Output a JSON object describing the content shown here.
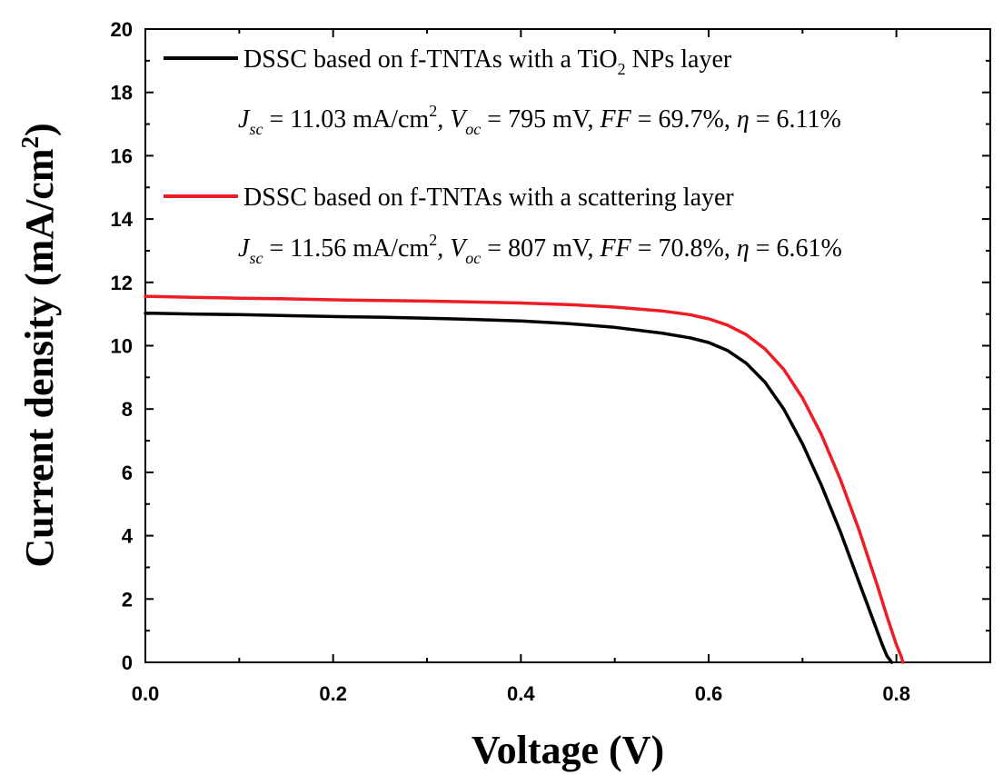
{
  "chart_data": {
    "type": "line",
    "xlabel": "Voltage (V)",
    "ylabel": {
      "text": "Current density (mA/cm",
      "sup": "2",
      "close": ")"
    },
    "xlim": [
      0.0,
      0.9
    ],
    "ylim": [
      0,
      20
    ],
    "xticks": [
      "0.0",
      "0.2",
      "0.4",
      "0.6",
      "0.8"
    ],
    "yticks": [
      "0",
      "2",
      "4",
      "6",
      "8",
      "10",
      "12",
      "14",
      "16",
      "18",
      "20"
    ],
    "grid": false,
    "legend_position": "top",
    "series": [
      {
        "name": "DSSC based on f-TNTAs with a TiO2 NPs layer",
        "color": "#000000",
        "legend": {
          "main_pre": "DSSC based on f-TNTAs with a TiO",
          "main_sub": "2",
          "main_post": " NPs layer",
          "jsc_sym": "J",
          "jsc_sub": "sc",
          "jsc_value": " = 11.03 mA/cm",
          "jsc_sup": "2",
          "voc_sym": ", V",
          "voc_sub": "oc",
          "voc_value": " = 795 mV, ",
          "ff_sym": "FF",
          "ff_value": " = 69.7%, ",
          "eta_sym": "η",
          "eta_value": " = 6.11%"
        },
        "x": [
          0.0,
          0.05,
          0.1,
          0.15,
          0.2,
          0.25,
          0.3,
          0.35,
          0.4,
          0.45,
          0.5,
          0.55,
          0.58,
          0.6,
          0.62,
          0.64,
          0.66,
          0.68,
          0.7,
          0.72,
          0.74,
          0.76,
          0.77,
          0.78,
          0.785,
          0.79,
          0.795
        ],
        "y": [
          11.03,
          11.0,
          10.98,
          10.95,
          10.92,
          10.9,
          10.87,
          10.83,
          10.78,
          10.7,
          10.58,
          10.4,
          10.25,
          10.1,
          9.85,
          9.45,
          8.85,
          8.0,
          6.9,
          5.6,
          4.15,
          2.55,
          1.75,
          0.95,
          0.55,
          0.2,
          0.0
        ]
      },
      {
        "name": "DSSC based on f-TNTAs with a scattering layer",
        "color": "#ee1c25",
        "legend": {
          "main_pre": "DSSC based on f-TNTAs with a scattering layer",
          "main_sub": "",
          "main_post": "",
          "jsc_sym": "J",
          "jsc_sub": "sc",
          "jsc_value": " = 11.56 mA/cm",
          "jsc_sup": "2",
          "voc_sym": ", V",
          "voc_sub": "oc",
          "voc_value": " = 807 mV, ",
          "ff_sym": "FF",
          "ff_value": " = 70.8%, ",
          "eta_sym": "η",
          "eta_value": " = 6.61%"
        },
        "x": [
          0.0,
          0.05,
          0.1,
          0.15,
          0.2,
          0.25,
          0.3,
          0.35,
          0.4,
          0.45,
          0.5,
          0.55,
          0.58,
          0.6,
          0.62,
          0.64,
          0.66,
          0.68,
          0.7,
          0.72,
          0.74,
          0.76,
          0.78,
          0.79,
          0.8,
          0.805,
          0.807
        ],
        "y": [
          11.56,
          11.53,
          11.5,
          11.48,
          11.45,
          11.43,
          11.41,
          11.38,
          11.35,
          11.3,
          11.22,
          11.1,
          10.98,
          10.85,
          10.65,
          10.35,
          9.9,
          9.25,
          8.35,
          7.2,
          5.8,
          4.2,
          2.4,
          1.45,
          0.55,
          0.2,
          0.0
        ]
      }
    ]
  }
}
